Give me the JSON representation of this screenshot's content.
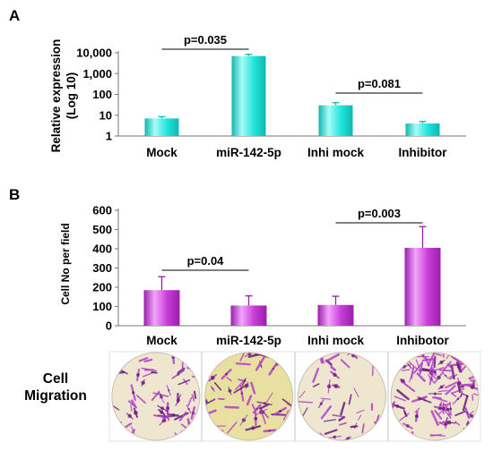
{
  "chart_data": [
    {
      "panel_label": "A",
      "type": "bar",
      "scale": "log10",
      "ylabel_line1": "Relative expression",
      "ylabel_line2": "(Log 10)",
      "categories": [
        "Mock",
        "miR-142-5p",
        "Inhi mock",
        "Inhibitor"
      ],
      "values": [
        7,
        7000,
        30,
        4
      ],
      "errors_upper": [
        8.5,
        8500,
        40,
        5
      ],
      "yticks": [
        {
          "value": 1,
          "label": "1"
        },
        {
          "value": 10,
          "label": "10"
        },
        {
          "value": 100,
          "label": "100"
        },
        {
          "value": 1000,
          "label": "1,000"
        },
        {
          "value": 10000,
          "label": "10,000"
        }
      ],
      "ylim": [
        1,
        10000
      ],
      "bar_color": "#1ee6dc",
      "bar_color_light": "#a8fbf6",
      "bar_color_dark": "#10b8b0",
      "annotations": [
        {
          "text": "p=0.035",
          "from": 0,
          "to": 1
        },
        {
          "text": "p=0.081",
          "from": 2,
          "to": 3
        }
      ]
    },
    {
      "panel_label": "B",
      "type": "bar",
      "scale": "linear",
      "ylabel": "Cell No per field",
      "categories": [
        "Mock",
        "miR-142-5p",
        "Inhi mock",
        "Inhibotor"
      ],
      "values": [
        185,
        105,
        108,
        405
      ],
      "errors": [
        70,
        50,
        45,
        110
      ],
      "yticks": [
        {
          "value": 0,
          "label": "0"
        },
        {
          "value": 100,
          "label": "100"
        },
        {
          "value": 200,
          "label": "200"
        },
        {
          "value": 300,
          "label": "300"
        },
        {
          "value": 400,
          "label": "400"
        },
        {
          "value": 500,
          "label": "500"
        },
        {
          "value": 600,
          "label": "600"
        }
      ],
      "ylim": [
        0,
        600
      ],
      "bar_color": "#c83cd8",
      "bar_color_light": "#f2a6fb",
      "bar_color_dark": "#9a1fab",
      "annotations": [
        {
          "text": "p=0.04",
          "from": 0,
          "to": 1
        },
        {
          "text": "p=0.003",
          "from": 2,
          "to": 3
        }
      ]
    }
  ],
  "migration_label_line1": "Cell",
  "migration_label_line2": "Migration",
  "colors": {
    "stain": "#b23cc8",
    "stain_dark": "#6a1a80",
    "dish_bg": "#efe6cf",
    "dish_bg_yellow": "#e8e0a0"
  }
}
